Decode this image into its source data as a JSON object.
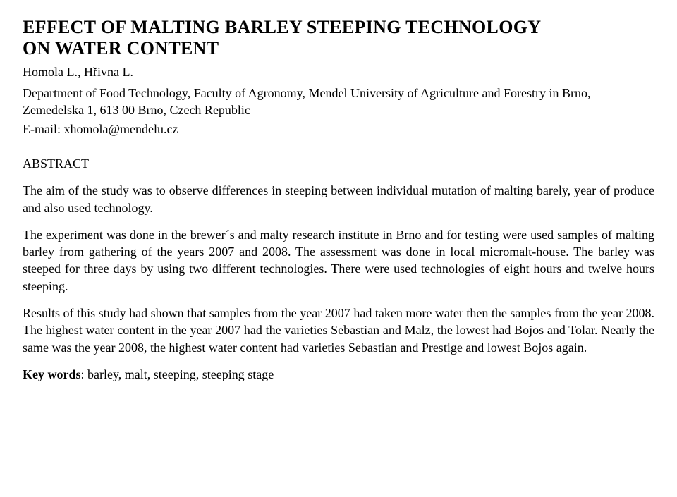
{
  "title_line1": "EFFECT OF MALTING BARLEY STEEPING TECHNOLOGY",
  "title_line2": "ON WATER CONTENT",
  "authors": "Homola L., Hřivna L.",
  "affiliation": "Department of Food Technology, Faculty of Agronomy, Mendel University of Agriculture and Forestry in Brno, Zemedelska 1, 613 00 Brno, Czech Republic",
  "email": "E-mail: xhomola@mendelu.cz",
  "abstract_heading": "ABSTRACT",
  "p1": "The aim of the study was to observe differences in steeping between individual mutation of malting barely, year of produce and also used technology.",
  "p2": "The experiment was done in the brewer´s and malty research institute in Brno and for testing were used samples of malting barley from gathering of the years 2007 and 2008. The assessment was done in local micromalt-house. The barley was steeped for three days by using two different technologies. There were used technologies of eight hours and twelve hours steeping.",
  "p3": "Results of this study had shown that samples from the year 2007 had taken more water then the samples from the year 2008. The highest water content in the year 2007 had the varieties Sebastian and Malz, the lowest had Bojos and Tolar. Nearly the same was the year 2008, the highest water content had varieties Sebastian and Prestige and lowest Bojos again.",
  "keywords_label": "Key words",
  "keywords_text": ": barley, malt, steeping, steeping stage"
}
